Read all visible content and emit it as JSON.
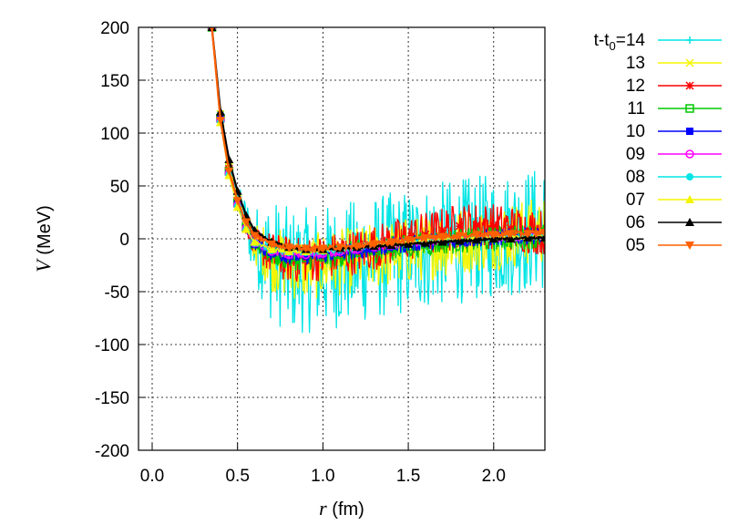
{
  "chart_data": {
    "type": "line",
    "title": "",
    "xlabel_var": "r",
    "xlabel_unit": " (fm)",
    "ylabel_var": "V",
    "ylabel_unit": " (MeV)",
    "xlim": [
      -0.08,
      2.3
    ],
    "ylim": [
      -200,
      200
    ],
    "xticks": [
      0.0,
      0.5,
      1.0,
      1.5,
      2.0
    ],
    "xtick_labels": [
      "0.0",
      "0.5",
      "1.0",
      "1.5",
      "2.0"
    ],
    "yticks": [
      200,
      150,
      100,
      50,
      0,
      -50,
      -100,
      -150,
      -200
    ],
    "ytick_labels": [
      "200",
      "150",
      "100",
      "50",
      "0",
      "-50",
      "-100",
      "-150",
      "-200"
    ],
    "grid": true,
    "legend_position": "right",
    "legend_prefix": "t-t",
    "legend_subscript": "0",
    "legend_equals": "=",
    "r_points": [
      0.35,
      0.4,
      0.45,
      0.5,
      0.55,
      0.6,
      0.7,
      0.8,
      0.9,
      1.0,
      1.1,
      1.2,
      1.3,
      1.4,
      1.5,
      1.6,
      1.7,
      1.8,
      1.9,
      2.0,
      2.1,
      2.2,
      2.3
    ],
    "series": [
      {
        "name": "14",
        "color": "#00e5e5",
        "marker": "plus",
        "noise": 60,
        "values": [
          200,
          120,
          70,
          40,
          15,
          -5,
          -20,
          -30,
          -30,
          -28,
          -25,
          -22,
          -18,
          -15,
          -12,
          -8,
          -5,
          -2,
          0,
          3,
          5,
          8,
          10
        ]
      },
      {
        "name": "13",
        "color": "#f5f500",
        "marker": "cross",
        "noise": 32,
        "values": [
          200,
          118,
          68,
          38,
          14,
          -5,
          -18,
          -26,
          -27,
          -25,
          -22,
          -20,
          -17,
          -14,
          -11,
          -8,
          -5,
          -2,
          0,
          2,
          4,
          6,
          8
        ]
      },
      {
        "name": "12",
        "color": "#ff0000",
        "marker": "star",
        "noise": 22,
        "values": [
          200,
          115,
          66,
          36,
          13,
          -4,
          -15,
          -20,
          -20,
          -18,
          -15,
          -12,
          -8,
          -4,
          0,
          4,
          8,
          12,
          13,
          12,
          10,
          8,
          6
        ]
      },
      {
        "name": "11",
        "color": "#00c800",
        "marker": "square-open",
        "noise": 12,
        "values": [
          200,
          114,
          64,
          34,
          11,
          -5,
          -14,
          -18,
          -18,
          -17,
          -15,
          -13,
          -11,
          -9,
          -7,
          -5,
          -3,
          -2,
          -1,
          0,
          1,
          2,
          3
        ]
      },
      {
        "name": "10",
        "color": "#0000ff",
        "marker": "square-filled",
        "noise": 8,
        "values": [
          200,
          113,
          63,
          33,
          10,
          -5,
          -13,
          -16,
          -16,
          -15,
          -13,
          -11,
          -9,
          -7,
          -5,
          -3,
          -2,
          -1,
          0,
          1,
          2,
          3,
          3
        ]
      },
      {
        "name": "09",
        "color": "#ff00ff",
        "marker": "circle-open",
        "noise": 4,
        "values": [
          200,
          112,
          62,
          32,
          10,
          -4,
          -12,
          -15,
          -15,
          -14,
          -12,
          -10,
          -8,
          -6,
          -4,
          -3,
          -2,
          -1,
          0,
          1,
          1,
          2,
          2
        ]
      },
      {
        "name": "08",
        "color": "#00e5e5",
        "marker": "circle-filled",
        "noise": 3,
        "values": [
          200,
          111,
          61,
          31,
          9,
          -4,
          -11,
          -13,
          -13,
          -12,
          -10,
          -8,
          -6,
          -5,
          -3,
          -2,
          -1,
          0,
          0,
          1,
          1,
          2,
          2
        ]
      },
      {
        "name": "07",
        "color": "#f5f500",
        "marker": "triangle-up",
        "noise": 2,
        "values": [
          200,
          110,
          60,
          30,
          9,
          -3,
          -10,
          -12,
          -12,
          -11,
          -9,
          -7,
          -5,
          -4,
          -3,
          -2,
          -1,
          0,
          0,
          1,
          1,
          1,
          2
        ]
      },
      {
        "name": "06",
        "color": "#000000",
        "marker": "triangle-up-filled",
        "noise": 1,
        "values": [
          200,
          120,
          75,
          45,
          22,
          8,
          -3,
          -8,
          -10,
          -10,
          -9,
          -8,
          -7,
          -6,
          -5,
          -4,
          -3,
          -2,
          -1,
          0,
          0,
          1,
          1
        ]
      },
      {
        "name": "05",
        "color": "#ff6000",
        "marker": "triangle-down",
        "noise": 2,
        "values": [
          200,
          112,
          64,
          36,
          16,
          3,
          -5,
          -8,
          -9,
          -9,
          -8,
          -7,
          -5,
          -3,
          -1,
          1,
          2,
          3,
          4,
          4,
          5,
          5,
          6
        ]
      }
    ]
  }
}
